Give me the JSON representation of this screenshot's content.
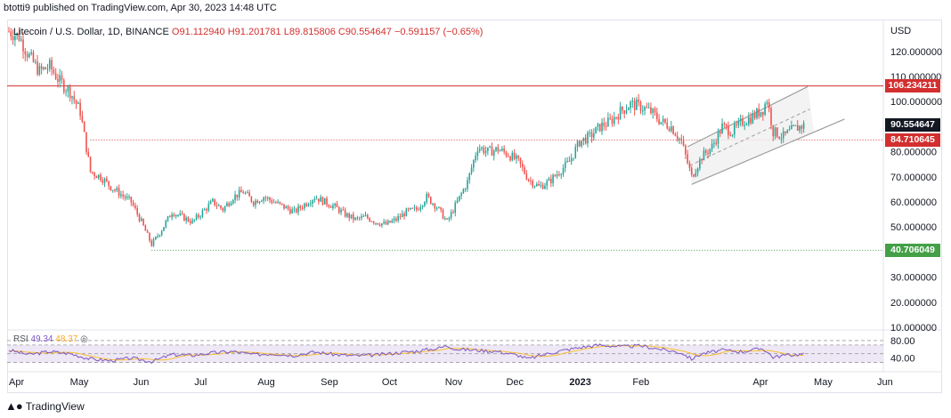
{
  "header": {
    "publisher": "btotti9 published on TradingView.com, Apr 30, 2023 14:48 UTC"
  },
  "legend": {
    "symbol": "Litecoin / U.S. Dollar, 1D, BINANCE",
    "open": "O91.112940",
    "high": "H91.201781",
    "low": "L89.815806",
    "close": "C90.554647",
    "change": "−0.591157 (−0.65%)"
  },
  "rsi_legend": {
    "label": "RSI",
    "value": "49.34",
    "ma_value": "48.37"
  },
  "footer": {
    "brand": "TradingView",
    "logo_icon": "tradingview-logo-icon"
  },
  "colors": {
    "up": "#26a69a",
    "down": "#ef5350",
    "resistance": "#d32f2f",
    "support": "#43a047",
    "rsi": "#7e57c2",
    "rsi_ma": "#fbc02d",
    "rsi_band": "#ede7f6"
  },
  "chart_data": {
    "type": "candlestick",
    "currency_label": "USD",
    "ylim": [
      10,
      132
    ],
    "y_ticks": [
      "120.000000",
      "110.000000",
      "100.000000",
      "80.000000",
      "70.000000",
      "60.000000",
      "50.000000",
      "30.000000",
      "20.000000",
      "10.000000"
    ],
    "y_tick_values": [
      120,
      110,
      100,
      80,
      70,
      60,
      50,
      30,
      20,
      10
    ],
    "x_ticks": [
      "Apr",
      "May",
      "Jun",
      "Jul",
      "Aug",
      "Sep",
      "Oct",
      "Nov",
      "Dec",
      "2023",
      "Feb",
      "Apr",
      "May",
      "Jun"
    ],
    "x_tick_days": [
      0,
      30,
      61,
      91,
      122,
      153,
      183,
      214,
      244,
      275,
      306,
      365,
      395,
      426
    ],
    "price_labels": [
      {
        "text": "106.234211",
        "value": 106.234211,
        "color": "#d32f2f"
      },
      {
        "text": "90.554647",
        "value": 90.554647,
        "color": "#131722"
      },
      {
        "text": "84.710645",
        "value": 84.710645,
        "color": "#d32f2f"
      },
      {
        "text": "40.706049",
        "value": 40.706049,
        "color": "#43a047"
      }
    ],
    "levels": {
      "resistance": 106.234211,
      "pivot": 84.710645,
      "support": 40.706049
    },
    "closes_anchor": [
      [
        0,
        128
      ],
      [
        5,
        126
      ],
      [
        10,
        118
      ],
      [
        15,
        112
      ],
      [
        20,
        114
      ],
      [
        25,
        108
      ],
      [
        30,
        104
      ],
      [
        35,
        96
      ],
      [
        40,
        72
      ],
      [
        45,
        70
      ],
      [
        50,
        66
      ],
      [
        55,
        63
      ],
      [
        60,
        60
      ],
      [
        65,
        52
      ],
      [
        70,
        43
      ],
      [
        75,
        49
      ],
      [
        80,
        56
      ],
      [
        85,
        54
      ],
      [
        90,
        52
      ],
      [
        95,
        56
      ],
      [
        100,
        60
      ],
      [
        105,
        57
      ],
      [
        110,
        62
      ],
      [
        115,
        64
      ],
      [
        120,
        60
      ],
      [
        125,
        62
      ],
      [
        130,
        60
      ],
      [
        135,
        58
      ],
      [
        140,
        56
      ],
      [
        145,
        59
      ],
      [
        150,
        62
      ],
      [
        155,
        60
      ],
      [
        160,
        58
      ],
      [
        165,
        55
      ],
      [
        170,
        53
      ],
      [
        175,
        54
      ],
      [
        180,
        52
      ],
      [
        185,
        51
      ],
      [
        190,
        53
      ],
      [
        195,
        56
      ],
      [
        200,
        57
      ],
      [
        205,
        62
      ],
      [
        210,
        58
      ],
      [
        215,
        52
      ],
      [
        220,
        60
      ],
      [
        225,
        68
      ],
      [
        230,
        82
      ],
      [
        235,
        80
      ],
      [
        240,
        81
      ],
      [
        245,
        79
      ],
      [
        250,
        76
      ],
      [
        255,
        69
      ],
      [
        260,
        66
      ],
      [
        265,
        68
      ],
      [
        270,
        72
      ],
      [
        275,
        76
      ],
      [
        280,
        84
      ],
      [
        285,
        86
      ],
      [
        290,
        90
      ],
      [
        295,
        92
      ],
      [
        300,
        96
      ],
      [
        305,
        99
      ],
      [
        310,
        98
      ],
      [
        315,
        96
      ],
      [
        320,
        92
      ],
      [
        325,
        90
      ],
      [
        330,
        84
      ],
      [
        335,
        70
      ],
      [
        340,
        78
      ],
      [
        345,
        82
      ],
      [
        350,
        90
      ],
      [
        355,
        88
      ],
      [
        360,
        92
      ],
      [
        365,
        94
      ],
      [
        370,
        97
      ],
      [
        372,
        101
      ],
      [
        375,
        88
      ],
      [
        380,
        86
      ],
      [
        385,
        89
      ],
      [
        390,
        90.55
      ]
    ],
    "rsi": {
      "levels": [
        "80.00",
        "40.00"
      ],
      "level_values": [
        80,
        40
      ],
      "band": [
        30,
        70
      ],
      "values_anchor": [
        [
          0,
          58
        ],
        [
          10,
          48
        ],
        [
          20,
          55
        ],
        [
          30,
          50
        ],
        [
          40,
          38
        ],
        [
          50,
          34
        ],
        [
          60,
          40
        ],
        [
          70,
          32
        ],
        [
          80,
          48
        ],
        [
          90,
          46
        ],
        [
          100,
          52
        ],
        [
          110,
          55
        ],
        [
          120,
          48
        ],
        [
          130,
          50
        ],
        [
          140,
          46
        ],
        [
          150,
          54
        ],
        [
          160,
          48
        ],
        [
          170,
          45
        ],
        [
          180,
          47
        ],
        [
          190,
          52
        ],
        [
          200,
          56
        ],
        [
          210,
          62
        ],
        [
          215,
          68
        ],
        [
          220,
          60
        ],
        [
          230,
          58
        ],
        [
          240,
          55
        ],
        [
          250,
          46
        ],
        [
          255,
          38
        ],
        [
          260,
          45
        ],
        [
          270,
          56
        ],
        [
          280,
          64
        ],
        [
          290,
          70
        ],
        [
          300,
          66
        ],
        [
          310,
          68
        ],
        [
          320,
          60
        ],
        [
          330,
          52
        ],
        [
          335,
          38
        ],
        [
          340,
          50
        ],
        [
          350,
          58
        ],
        [
          360,
          55
        ],
        [
          370,
          62
        ],
        [
          375,
          42
        ],
        [
          380,
          46
        ],
        [
          390,
          49
        ]
      ]
    }
  }
}
